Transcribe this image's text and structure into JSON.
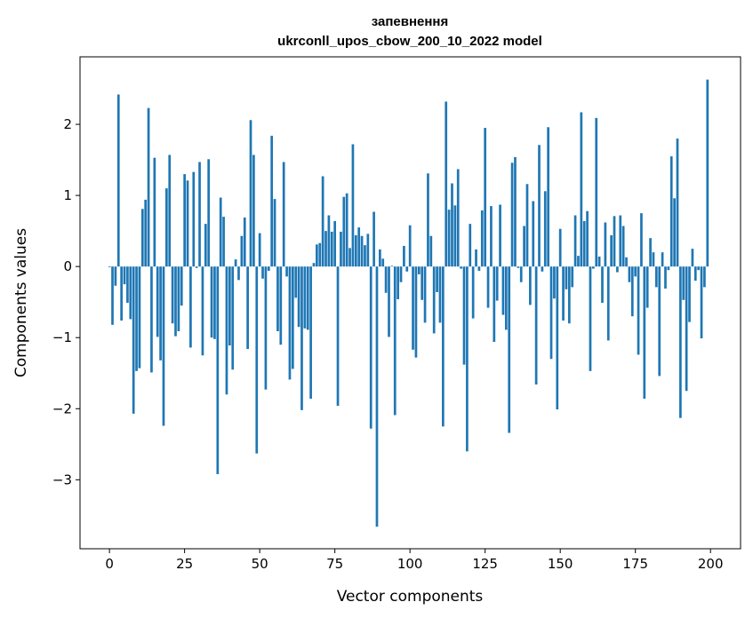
{
  "chart_data": {
    "type": "bar",
    "title_line1": "запевнення",
    "title_line2": "ukrconll_upos_cbow_200_10_2022 model",
    "xlabel": "Vector components",
    "ylabel": "Components values",
    "xlim": [
      -9.8,
      210
    ],
    "ylim": [
      -3.97,
      2.95
    ],
    "xticks": [
      0,
      25,
      50,
      75,
      100,
      125,
      150,
      175,
      200
    ],
    "yticks": [
      -3,
      -2,
      -1,
      0,
      1,
      2
    ],
    "ytick_labels": [
      "−3",
      "−2",
      "−1",
      "0",
      "1",
      "2"
    ],
    "grid": false,
    "bar_color": "#1f77b4",
    "values": [
      -0.01,
      -0.82,
      -0.27,
      2.42,
      -0.76,
      -0.25,
      -0.51,
      -0.74,
      -2.07,
      -1.47,
      -1.43,
      0.81,
      0.94,
      2.23,
      -1.49,
      1.53,
      -0.99,
      -1.32,
      -2.24,
      1.1,
      1.57,
      -0.8,
      -0.98,
      -0.91,
      -0.55,
      1.3,
      1.21,
      -1.14,
      1.33,
      -0.02,
      1.47,
      -1.25,
      0.6,
      1.51,
      -1.0,
      -1.02,
      -2.92,
      0.97,
      0.7,
      -1.8,
      -1.11,
      -1.45,
      0.1,
      -0.19,
      0.43,
      0.69,
      -1.16,
      2.06,
      1.57,
      -2.63,
      0.47,
      -0.17,
      -1.73,
      -0.06,
      1.84,
      0.95,
      -0.91,
      -1.1,
      1.47,
      -0.14,
      -1.59,
      -1.44,
      -0.44,
      -0.85,
      -2.02,
      -0.87,
      -0.89,
      -1.86,
      0.05,
      0.31,
      0.33,
      1.27,
      0.5,
      0.72,
      0.49,
      0.64,
      -1.96,
      0.49,
      0.98,
      1.03,
      0.26,
      1.72,
      0.44,
      0.55,
      0.43,
      0.3,
      0.46,
      -2.28,
      0.77,
      -3.66,
      0.24,
      0.11,
      -0.37,
      -0.99,
      0.01,
      -2.09,
      -0.46,
      -0.22,
      0.29,
      -0.07,
      0.58,
      -1.17,
      -1.28,
      -0.11,
      -0.47,
      -0.79,
      1.31,
      0.43,
      -0.94,
      -0.36,
      -0.79,
      -2.25,
      2.32,
      0.8,
      1.17,
      0.86,
      1.37,
      -0.03,
      -1.38,
      -2.6,
      0.6,
      -0.73,
      0.24,
      -0.06,
      0.79,
      1.95,
      -0.58,
      0.85,
      -1.06,
      -0.48,
      0.87,
      -0.68,
      -0.89,
      -2.34,
      1.46,
      1.54,
      -0.02,
      -0.22,
      0.57,
      1.16,
      -0.54,
      0.92,
      -1.66,
      1.71,
      -0.07,
      1.06,
      1.96,
      -1.3,
      -0.45,
      -2.01,
      0.53,
      -0.76,
      -0.32,
      -0.8,
      -0.29,
      0.72,
      0.15,
      2.17,
      0.64,
      0.78,
      -1.47,
      -0.03,
      2.09,
      0.14,
      -0.51,
      0.62,
      -1.04,
      0.44,
      0.71,
      -0.08,
      0.72,
      0.57,
      0.13,
      -0.22,
      -0.7,
      -0.14,
      -1.24,
      0.75,
      -1.86,
      -0.58,
      0.4,
      0.2,
      -0.29,
      -1.54,
      0.2,
      -0.31,
      -0.05,
      1.55,
      0.96,
      1.8,
      -2.13,
      -0.47,
      -1.75,
      -0.78,
      0.25,
      -0.2,
      -0.05,
      -1.01,
      -0.29,
      2.63
    ]
  }
}
